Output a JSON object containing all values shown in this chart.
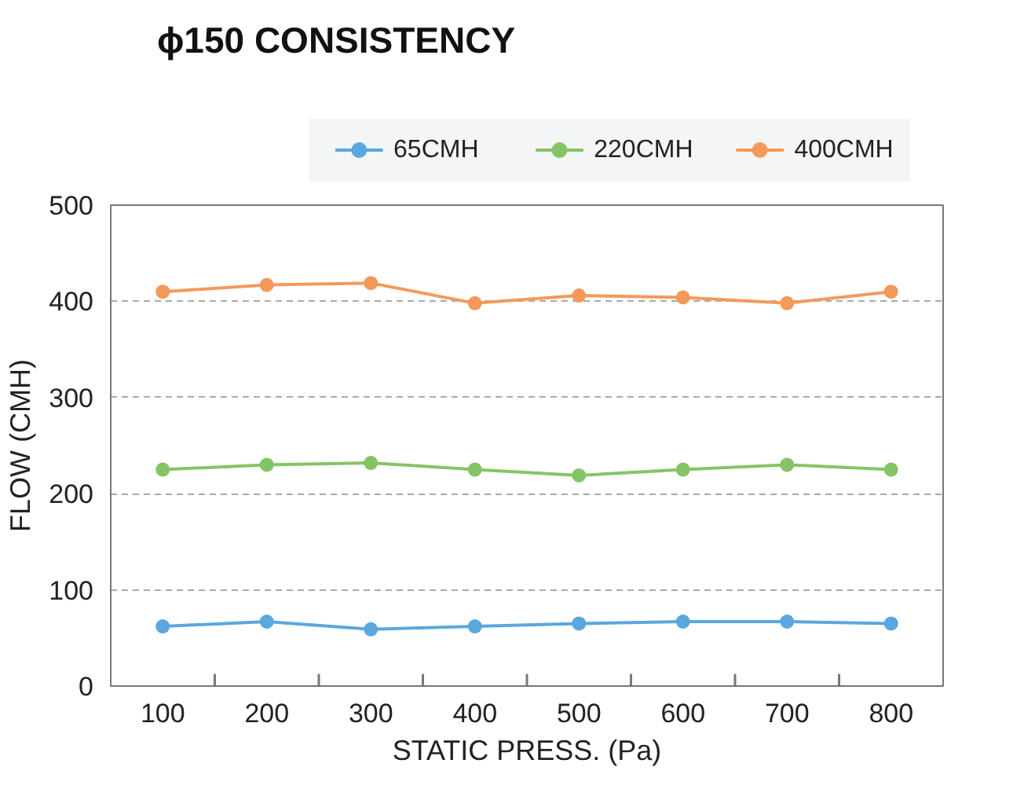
{
  "chart_data": {
    "type": "line",
    "title": "ϕ150 CONSISTENCY",
    "xlabel": "STATIC PRESS. (Pa)",
    "ylabel": "FLOW (CMH)",
    "categories": [
      "100",
      "200",
      "300",
      "400",
      "500",
      "600",
      "700",
      "800"
    ],
    "series": [
      {
        "name": "65CMH",
        "color": "#5ba7df",
        "values": [
          62,
          67,
          59,
          62,
          65,
          67,
          67,
          65
        ]
      },
      {
        "name": "220CMH",
        "color": "#85c466",
        "values": [
          225,
          230,
          232,
          225,
          219,
          225,
          230,
          225
        ]
      },
      {
        "name": "400CMH",
        "color": "#f39a5b",
        "values": [
          410,
          417,
          419,
          398,
          406,
          404,
          398,
          410
        ]
      }
    ],
    "ylim": [
      0,
      500
    ],
    "yticks": [
      0,
      100,
      200,
      300,
      400,
      500
    ],
    "grid": "y",
    "legend": "top",
    "marker": "circle",
    "line_style": "solid"
  }
}
